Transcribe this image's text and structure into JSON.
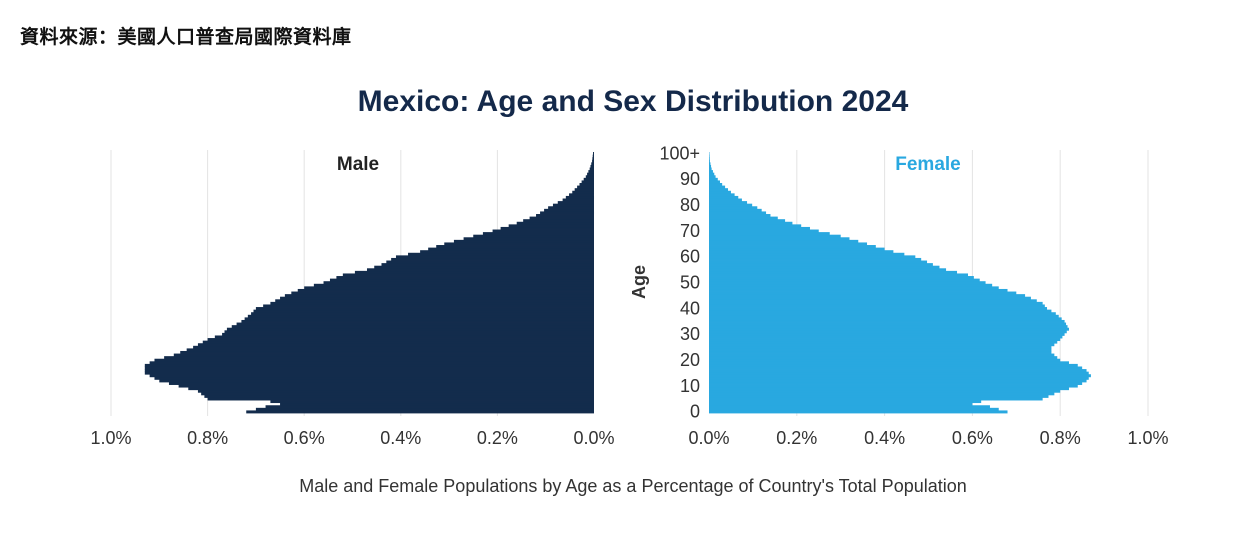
{
  "source_note": "資料來源：美國人口普查局國際資料庫",
  "caption": "Male and Female Populations by Age as a Percentage of Country's Total Population",
  "colors": {
    "male": "#132c4c",
    "female": "#29a8e0",
    "grid": "#e3e3e3"
  },
  "chart_data": {
    "type": "bar",
    "orientation": "horizontal-pyramid",
    "title": "Mexico: Age and Sex Distribution 2024",
    "ylabel": "Age",
    "age_ticks": [
      "0",
      "10",
      "20",
      "30",
      "40",
      "50",
      "60",
      "70",
      "80",
      "90",
      "100+"
    ],
    "male_ticks": [
      "1.0%",
      "0.8%",
      "0.6%",
      "0.4%",
      "0.2%",
      "0.0%"
    ],
    "female_ticks": [
      "0.0%",
      "0.2%",
      "0.4%",
      "0.6%",
      "0.8%",
      "1.0%"
    ],
    "xlim": [
      0,
      1.0
    ],
    "ylim": [
      0,
      100
    ],
    "grid": true,
    "series": [
      {
        "name": "Male",
        "anchors": [
          [
            0,
            0.72
          ],
          [
            1,
            0.7
          ],
          [
            2,
            0.68
          ],
          [
            3,
            0.65
          ],
          [
            4,
            0.67
          ],
          [
            5,
            0.8
          ],
          [
            8,
            0.82
          ],
          [
            10,
            0.86
          ],
          [
            12,
            0.9
          ],
          [
            15,
            0.93
          ],
          [
            18,
            0.93
          ],
          [
            20,
            0.91
          ],
          [
            22,
            0.87
          ],
          [
            25,
            0.83
          ],
          [
            28,
            0.8
          ],
          [
            30,
            0.77
          ],
          [
            32,
            0.76
          ],
          [
            35,
            0.73
          ],
          [
            38,
            0.71
          ],
          [
            40,
            0.7
          ],
          [
            42,
            0.67
          ],
          [
            45,
            0.64
          ],
          [
            48,
            0.6
          ],
          [
            50,
            0.56
          ],
          [
            53,
            0.52
          ],
          [
            55,
            0.47
          ],
          [
            57,
            0.44
          ],
          [
            60,
            0.41
          ],
          [
            62,
            0.36
          ],
          [
            65,
            0.31
          ],
          [
            68,
            0.25
          ],
          [
            70,
            0.21
          ],
          [
            73,
            0.16
          ],
          [
            76,
            0.12
          ],
          [
            79,
            0.095
          ],
          [
            82,
            0.065
          ],
          [
            85,
            0.045
          ],
          [
            88,
            0.03
          ],
          [
            91,
            0.017
          ],
          [
            94,
            0.009
          ],
          [
            97,
            0.004
          ],
          [
            100,
            0.002
          ]
        ]
      },
      {
        "name": "Female",
        "anchors": [
          [
            0,
            0.68
          ],
          [
            1,
            0.66
          ],
          [
            2,
            0.64
          ],
          [
            3,
            0.6
          ],
          [
            4,
            0.62
          ],
          [
            5,
            0.76
          ],
          [
            8,
            0.8
          ],
          [
            10,
            0.84
          ],
          [
            12,
            0.86
          ],
          [
            14,
            0.87
          ],
          [
            16,
            0.86
          ],
          [
            18,
            0.84
          ],
          [
            20,
            0.8
          ],
          [
            23,
            0.78
          ],
          [
            25,
            0.78
          ],
          [
            28,
            0.8
          ],
          [
            30,
            0.81
          ],
          [
            32,
            0.82
          ],
          [
            35,
            0.81
          ],
          [
            38,
            0.79
          ],
          [
            40,
            0.77
          ],
          [
            42,
            0.76
          ],
          [
            45,
            0.72
          ],
          [
            47,
            0.68
          ],
          [
            48,
            0.66
          ],
          [
            50,
            0.63
          ],
          [
            53,
            0.59
          ],
          [
            55,
            0.54
          ],
          [
            57,
            0.51
          ],
          [
            60,
            0.47
          ],
          [
            62,
            0.42
          ],
          [
            65,
            0.36
          ],
          [
            68,
            0.3
          ],
          [
            70,
            0.25
          ],
          [
            73,
            0.19
          ],
          [
            76,
            0.14
          ],
          [
            79,
            0.11
          ],
          [
            82,
            0.075
          ],
          [
            85,
            0.05
          ],
          [
            88,
            0.03
          ],
          [
            91,
            0.015
          ],
          [
            94,
            0.006
          ],
          [
            97,
            0.002
          ],
          [
            100,
            0.001
          ]
        ]
      }
    ]
  }
}
